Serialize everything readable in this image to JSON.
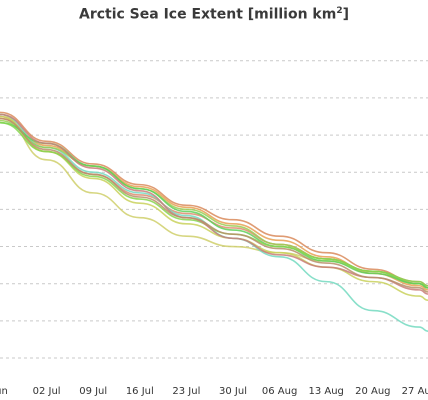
{
  "title": {
    "main": "Arctic Sea Ice Extent [million km",
    "sup": "2",
    "close": "]"
  },
  "chart_data": {
    "type": "line",
    "title": "Arctic Sea Ice Extent [million km2]",
    "xlabel": "",
    "ylabel": "",
    "x_tick_labels": [
      "Jun",
      "02 Jul",
      "09 Jul",
      "16 Jul",
      "23 Jul",
      "30 Jul",
      "06 Aug",
      "13 Aug",
      "20 Aug",
      "27 Aug"
    ],
    "x": [
      "Jun 25",
      "Jul 02",
      "Jul 09",
      "Jul 16",
      "Jul 23",
      "Jul 30",
      "Aug 06",
      "Aug 13",
      "Aug 20",
      "Aug 27",
      "Aug 30"
    ],
    "ylim": [
      3.6,
      11.4
    ],
    "grid": true,
    "series": [
      {
        "color": "#d98a5a",
        "values": [
          9.55,
          8.85,
          8.3,
          7.8,
          7.3,
          6.95,
          6.55,
          6.15,
          5.75,
          5.4,
          5.3
        ]
      },
      {
        "color": "#e7a052",
        "values": [
          9.4,
          8.75,
          8.25,
          7.75,
          7.25,
          6.85,
          6.45,
          6.05,
          5.65,
          5.35,
          5.25
        ]
      },
      {
        "color": "#dd8c6e",
        "values": [
          9.45,
          8.6,
          8.05,
          7.55,
          7.1,
          6.75,
          6.35,
          6.0,
          5.7,
          5.45,
          5.35
        ]
      },
      {
        "color": "#cfcf6a",
        "values": [
          9.5,
          8.4,
          7.6,
          7.0,
          6.55,
          6.3,
          6.15,
          5.95,
          5.7,
          5.4,
          5.3
        ]
      },
      {
        "color": "#c9d15c",
        "values": [
          9.45,
          8.6,
          7.95,
          7.35,
          6.85,
          6.5,
          6.15,
          5.8,
          5.45,
          5.1,
          5.0
        ]
      },
      {
        "color": "#73d9c0",
        "values": [
          9.5,
          8.7,
          8.1,
          7.6,
          7.05,
          6.5,
          6.05,
          5.45,
          4.75,
          4.35,
          4.25
        ]
      },
      {
        "color": "#9acd52",
        "values": [
          9.35,
          8.7,
          8.25,
          7.7,
          7.2,
          6.8,
          6.35,
          6.0,
          5.7,
          5.4,
          5.3
        ]
      },
      {
        "color": "#5fd058",
        "values": [
          9.3,
          8.8,
          8.25,
          7.7,
          7.15,
          6.7,
          6.3,
          5.95,
          5.65,
          5.4,
          5.3
        ]
      },
      {
        "color": "#86d54f",
        "values": [
          9.3,
          8.6,
          8.0,
          7.45,
          6.95,
          6.6,
          6.3,
          6.0,
          5.7,
          5.45,
          5.35
        ]
      },
      {
        "color": "#c97d78",
        "values": [
          9.5,
          8.8,
          8.2,
          7.65,
          7.0,
          6.5,
          6.1,
          5.8,
          5.55,
          5.25,
          5.15
        ]
      },
      {
        "color": "#b78f6a",
        "values": [
          9.4,
          8.65,
          8.05,
          7.5,
          7.0,
          6.6,
          6.25,
          5.9,
          5.55,
          5.3,
          5.2
        ]
      }
    ]
  }
}
